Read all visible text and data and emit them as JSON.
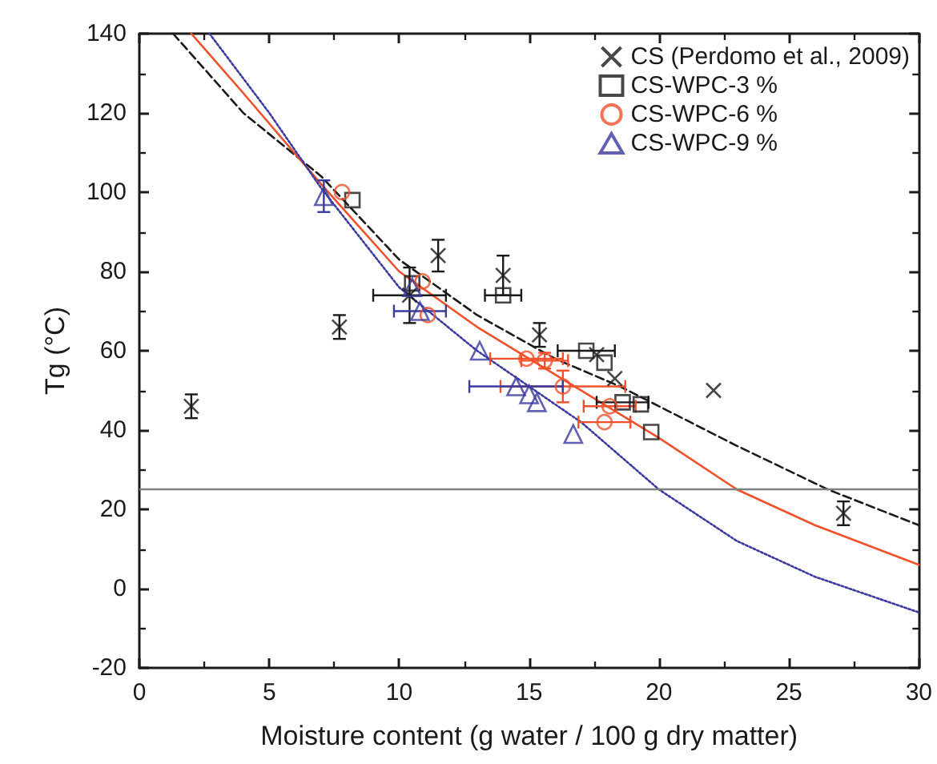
{
  "chart_data": {
    "type": "scatter",
    "xlabel": "Moisture content (g water / 100 g dry matter)",
    "ylabel": "Tg (°C)",
    "xlim": [
      0,
      30
    ],
    "xticks": [
      0,
      5,
      10,
      15,
      20,
      25,
      30
    ],
    "ylim": [
      -20,
      140
    ],
    "yticks": [
      -20,
      0,
      20,
      40,
      60,
      80,
      100,
      120,
      140
    ],
    "grid": false,
    "legend": "top right",
    "ref_lines": [
      {
        "axis": "y",
        "value": 25,
        "color": "#7f7f7f",
        "line_style": "solid"
      }
    ],
    "series": [
      {
        "name": "CS (Perdomo et al., 2009)",
        "marker": "cross",
        "color": "#1a1a1a",
        "x": [
          2.0,
          7.7,
          10.4,
          11.5,
          14.0,
          15.4,
          17.6,
          18.3,
          22.1,
          27.1
        ],
        "values": [
          46,
          66,
          74,
          84,
          79,
          64,
          59,
          53,
          50,
          19
        ],
        "errors": [
          3,
          3,
          7,
          4,
          5,
          3,
          null,
          null,
          null,
          3
        ],
        "xerrors": [
          null,
          null,
          1.4,
          null,
          null,
          null,
          null,
          null,
          null,
          null
        ]
      },
      {
        "name": "CS-WPC-3 %",
        "marker": "square",
        "color": "#1a1a1a",
        "x": [
          8.2,
          10.5,
          14.0,
          17.2,
          17.9,
          18.6,
          19.3,
          19.7
        ],
        "values": [
          98,
          77,
          74,
          60,
          57,
          47,
          46.5,
          39.5
        ],
        "xerrors": [
          null,
          null,
          0.7,
          1.1,
          null,
          1.0,
          null,
          null
        ]
      },
      {
        "name": "CS-WPC-6 %",
        "marker": "circle",
        "color": "#f0502a",
        "x": [
          7.8,
          10.9,
          11.1,
          14.9,
          15.6,
          16.3,
          18.1,
          17.9
        ],
        "values": [
          100,
          77.5,
          69,
          58,
          57.5,
          51,
          46,
          42
        ],
        "xerrors": [
          null,
          null,
          null,
          1.4,
          0.9,
          2.4,
          1.0,
          1.0
        ],
        "errors": [
          null,
          null,
          null,
          null,
          2,
          4,
          null,
          null
        ]
      },
      {
        "name": "CS-WPC-9 %",
        "marker": "triangle",
        "color": "#3a3aa0",
        "x": [
          7.1,
          10.5,
          10.8,
          13.1,
          14.5,
          15.0,
          15.3,
          16.7
        ],
        "values": [
          99,
          76,
          70,
          60,
          51,
          49,
          47,
          39
        ],
        "errors": [
          4,
          null,
          null,
          null,
          null,
          null,
          null,
          null
        ],
        "xerrors": [
          null,
          null,
          1.0,
          null,
          1.8,
          null,
          null,
          null
        ]
      },
      {
        "type": "line",
        "marker": "none",
        "line_style": "dashed",
        "color": "#1a1a1a",
        "x": [
          1.3,
          4,
          7,
          10,
          13,
          16,
          18.5,
          20,
          23,
          26.5,
          30
        ],
        "values": [
          140,
          120,
          104,
          83,
          69,
          58,
          51,
          46,
          36,
          25,
          16
        ]
      },
      {
        "type": "line",
        "marker": "none",
        "line_style": "solid",
        "color": "#f0502a",
        "x": [
          2,
          4,
          7,
          10,
          13,
          15,
          17.5,
          20,
          23,
          26,
          30
        ],
        "values": [
          140,
          125,
          102,
          80,
          66,
          58,
          48,
          38,
          25,
          16,
          6
        ]
      },
      {
        "type": "line",
        "marker": "none",
        "line_style": "dotted",
        "color": "#3a3aa0",
        "x": [
          2.7,
          5,
          7,
          10,
          13,
          15,
          17,
          20,
          23,
          26,
          30
        ],
        "values": [
          140,
          120,
          101,
          76,
          60,
          51,
          42,
          25,
          12,
          3,
          -6
        ]
      }
    ]
  }
}
